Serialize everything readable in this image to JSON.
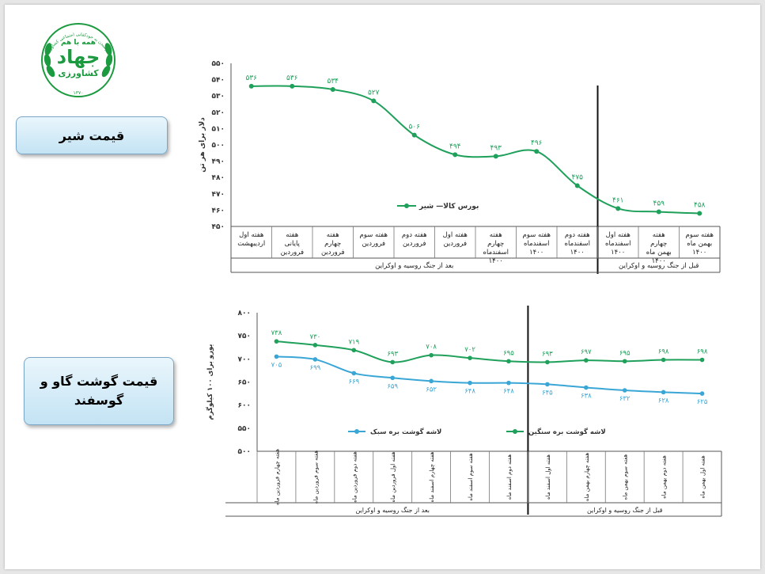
{
  "logo": {
    "top_text": "همه با هم",
    "main_text": "جهاد",
    "sub_text": "کشاورزی",
    "ring_text": "تا رسیدن به خودکفایی اجتماعی کشاورزی",
    "year_text": "۱۳۷۰"
  },
  "labels": {
    "milk": "قیمت شیر",
    "meat": "قیمت گوشت گاو و گوسفند"
  },
  "colors": {
    "series_green": "#1fa05b",
    "series_blue": "#3aa6d6"
  },
  "chart_data": [
    {
      "type": "line",
      "ylabel": "دلار برای هر تن",
      "ylim": [
        450,
        550
      ],
      "yticks": [
        "۴۵۰",
        "۴۶۰",
        "۴۷۰",
        "۴۸۰",
        "۴۹۰",
        "۵۰۰",
        "۵۱۰",
        "۵۲۰",
        "۵۳۰",
        "۵۴۰",
        "۵۵۰"
      ],
      "categories": [
        "هفته سوم بهمن ماه ۱۴۰۰",
        "هفته چهارم بهمن ماه ۱۴۰۰",
        "هفته اول اسفندماه ۱۴۰۰",
        "هفته دوم اسفندماه ۱۴۰۰",
        "هفته سوم اسفندماه ۱۴۰۰",
        "هفته چهارم اسفندماه ۱۴۰۰",
        "هفته اول فروردین",
        "هفته دوم فروردین",
        "هفته سوم فروردین",
        "هفته چهارم فروردین",
        "هفته پایانی فروردین",
        "هفته اول اردیبهشت"
      ],
      "series": [
        {
          "name": "بورس کالا— شیر",
          "values": [
            458,
            459,
            461,
            475,
            496,
            493,
            494,
            506,
            527,
            534,
            536,
            536
          ],
          "labels": [
            "۴۵۸",
            "۴۵۹",
            "۴۶۱",
            "۴۷۵",
            "۴۹۶",
            "۴۹۳",
            "۴۹۴",
            "۵۰۶",
            "۵۲۷",
            "۵۳۴",
            "۵۳۶",
            "۵۳۶"
          ]
        }
      ],
      "groups": [
        {
          "label": "قبل از جنگ روسیه و اوکراین",
          "count": 3
        },
        {
          "label": "بعد از جنگ روسیه و اوکراین",
          "count": 9
        }
      ],
      "divider_after": 3,
      "legend": "center-right"
    },
    {
      "type": "line",
      "ylabel": "یورو برای ۱۰۰ کیلوگرم",
      "ylim": [
        500,
        800
      ],
      "yticks": [
        "۵۰۰",
        "۵۵۰",
        "۶۰۰",
        "۶۵۰",
        "۷۰۰",
        "۷۵۰",
        "۸۰۰"
      ],
      "categories": [
        "هفته اول بهمن ماه",
        "هفته دوم بهمن ماه",
        "هفته سوم بهمن ماه",
        "هفته چهارم بهمن ماه",
        "هفته اول اسفند ماه",
        "هفته دوم اسفند ماه",
        "هفته سوم اسفند ماه",
        "هفته چهارم اسفند ماه",
        "هفته اول فروردین ماه",
        "هفته دوم فروردین ماه",
        "هفته سوم فروردین ماه",
        "هفته چهارم فروردین ماه"
      ],
      "series": [
        {
          "name": "لاشه گوشت بره سنگین",
          "values": [
            698,
            698,
            695,
            697,
            693,
            695,
            702,
            708,
            693,
            719,
            730,
            738
          ],
          "labels": [
            "۶۹۸",
            "۶۹۸",
            "۶۹۵",
            "۶۹۷",
            "۶۹۳",
            "۶۹۵",
            "۷۰۲",
            "۷۰۸",
            "۶۹۳",
            "۷۱۹",
            "۷۳۰",
            "۷۳۸"
          ]
        },
        {
          "name": "لاشه گوشت بره سبک",
          "values": [
            625,
            628,
            632,
            638,
            645,
            648,
            648,
            652,
            659,
            669,
            699,
            705
          ],
          "labels": [
            "۶۲۵",
            "۶۲۸",
            "۶۳۲",
            "۶۳۸",
            "۶۴۵",
            "۶۴۸",
            "۶۴۸",
            "۶۵۲",
            "۶۵۹",
            "۶۶۹",
            "۶۹۹",
            "۷۰۵"
          ]
        }
      ],
      "groups": [
        {
          "label": "قبل از جنگ روسیه و اوکراین",
          "count": 5
        },
        {
          "label": "بعد از جنگ روسیه و اوکراین",
          "count": 7
        }
      ],
      "divider_after": 5,
      "legend": "bottom"
    }
  ]
}
